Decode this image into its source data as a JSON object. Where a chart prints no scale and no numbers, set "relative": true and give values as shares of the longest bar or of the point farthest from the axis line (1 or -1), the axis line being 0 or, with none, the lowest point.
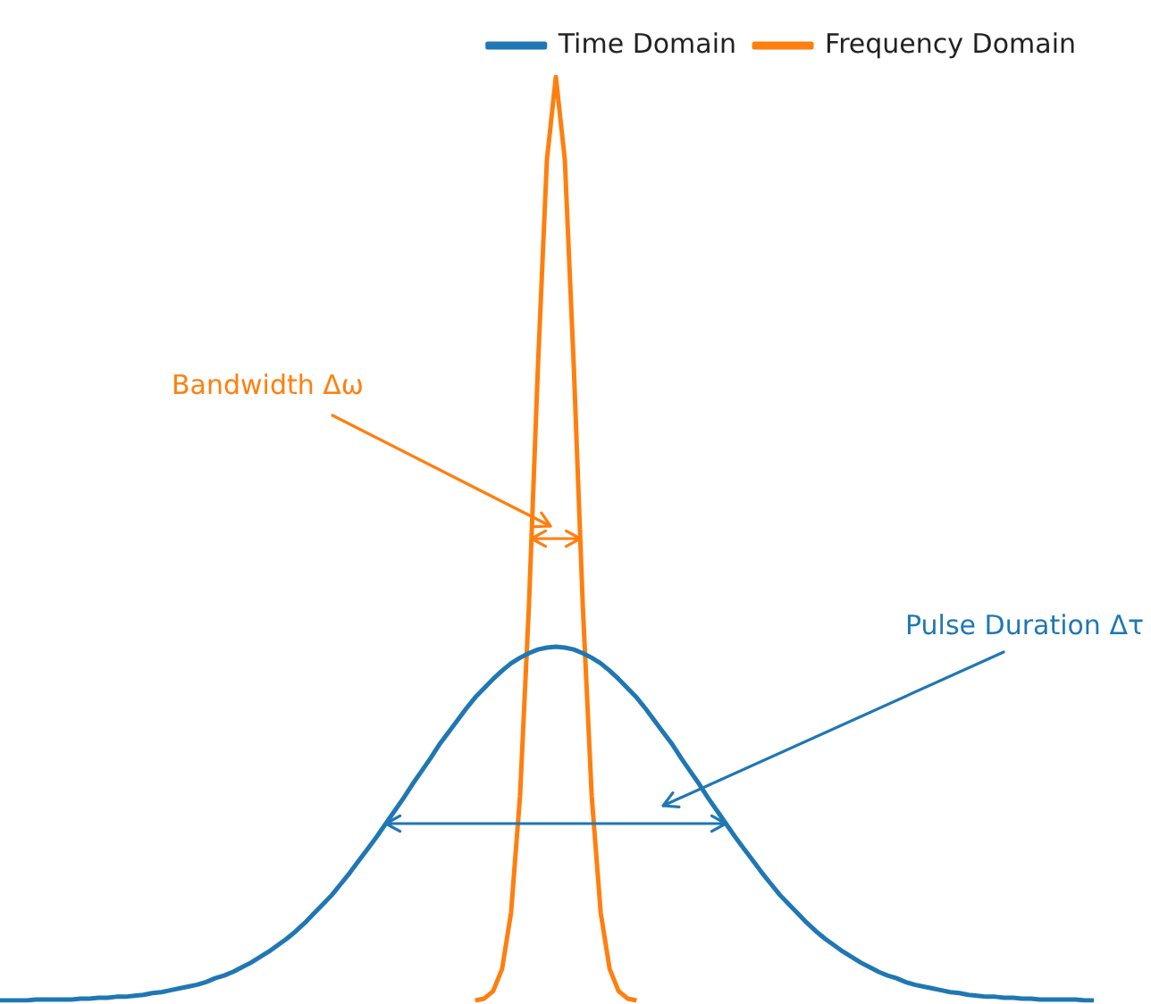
{
  "chart_data": {
    "type": "line",
    "relative": true,
    "legend": "top right",
    "annotations": [
      "Pulse Duration Δτ",
      "Bandwidth Δω"
    ],
    "categories": [
      null,
      null,
      null,
      null,
      null,
      null,
      null,
      null,
      null,
      null,
      null,
      null,
      null,
      null,
      null,
      null,
      null,
      null,
      null,
      null,
      null,
      null,
      null,
      null,
      null,
      null,
      null,
      null,
      null,
      null,
      null,
      null,
      null,
      null,
      null,
      null,
      null,
      null,
      null,
      null,
      null,
      null,
      null,
      null,
      null,
      null,
      null,
      null,
      null,
      null,
      null,
      null,
      null,
      null,
      null,
      null,
      null,
      null,
      null,
      null,
      null,
      null,
      null,
      null,
      null,
      null,
      null,
      null,
      null,
      null,
      null,
      null,
      null,
      null,
      null,
      null,
      null,
      null,
      null,
      null,
      null,
      null,
      null,
      null,
      null,
      null,
      null,
      null,
      null,
      null,
      null,
      null,
      null,
      null,
      null,
      null,
      null,
      null,
      null,
      null,
      null,
      null,
      null,
      null,
      null,
      null,
      null,
      null,
      null,
      null,
      null,
      null,
      null,
      null,
      null,
      null,
      null,
      null,
      null,
      null,
      null,
      null,
      null
    ],
    "series": [
      {
        "name": "Time Domain",
        "color": "#1f77b4",
        "values": [
          0,
          0,
          0,
          0,
          0.001,
          0.001,
          0.001,
          0.001,
          0.001,
          0.002,
          0.002,
          0.003,
          0.003,
          0.004,
          0.004,
          0.005,
          0.006,
          0.008,
          0.009,
          0.011,
          0.013,
          0.015,
          0.017,
          0.02,
          0.024,
          0.027,
          0.031,
          0.036,
          0.041,
          0.047,
          0.053,
          0.06,
          0.067,
          0.075,
          0.084,
          0.094,
          0.104,
          0.114,
          0.126,
          0.138,
          0.151,
          0.164,
          0.177,
          0.191,
          0.205,
          0.219,
          0.234,
          0.248,
          0.262,
          0.277,
          0.29,
          0.303,
          0.316,
          0.328,
          0.338,
          0.348,
          0.357,
          0.365,
          0.371,
          0.376,
          0.38,
          0.382,
          0.383,
          0.382,
          0.38,
          0.376,
          0.371,
          0.365,
          0.357,
          0.348,
          0.338,
          0.328,
          0.316,
          0.303,
          0.29,
          0.277,
          0.262,
          0.248,
          0.234,
          0.219,
          0.205,
          0.191,
          0.177,
          0.164,
          0.151,
          0.138,
          0.126,
          0.114,
          0.104,
          0.094,
          0.084,
          0.075,
          0.067,
          0.06,
          0.053,
          0.047,
          0.041,
          0.036,
          0.031,
          0.027,
          0.024,
          0.02,
          0.017,
          0.015,
          0.013,
          0.011,
          0.009,
          0.008,
          0.006,
          0.005,
          0.004,
          0.004,
          0.003,
          0.003,
          0.002,
          0.002,
          0.001,
          0.001,
          0.001,
          0.001,
          0.001,
          0,
          0
        ]
      },
      {
        "name": "Frequency Domain",
        "color": "#ff7f0e",
        "values": [
          null,
          null,
          null,
          null,
          null,
          null,
          null,
          null,
          null,
          null,
          null,
          null,
          null,
          null,
          null,
          null,
          null,
          null,
          null,
          null,
          null,
          null,
          null,
          null,
          null,
          null,
          null,
          null,
          null,
          null,
          null,
          null,
          null,
          null,
          null,
          null,
          null,
          null,
          null,
          null,
          null,
          null,
          null,
          null,
          null,
          null,
          null,
          null,
          null,
          null,
          null,
          null,
          null,
          0,
          0.002,
          0.01,
          0.034,
          0.095,
          0.221,
          0.428,
          0.686,
          0.91,
          1,
          0.91,
          0.686,
          0.428,
          0.221,
          0.095,
          0.034,
          0.01,
          0.002,
          0,
          null,
          null,
          null,
          null,
          null,
          null,
          null,
          null,
          null,
          null,
          null,
          null,
          null,
          null,
          null,
          null,
          null,
          null,
          null,
          null,
          null,
          null,
          null,
          null,
          null,
          null,
          null,
          null,
          null,
          null,
          null,
          null,
          null,
          null,
          null,
          null,
          null,
          null,
          null,
          null,
          null,
          null,
          null,
          null,
          null,
          null,
          null,
          null,
          null,
          null,
          null
        ]
      }
    ]
  }
}
